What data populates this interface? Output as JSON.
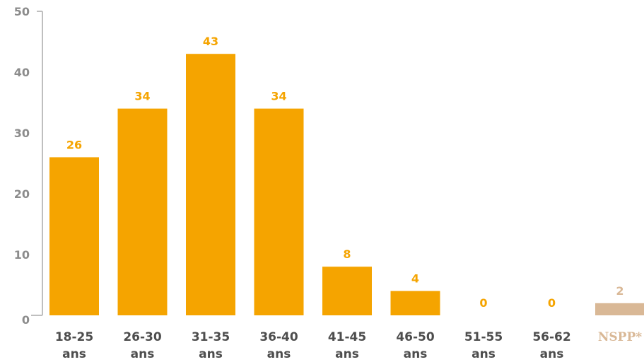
{
  "colors": {
    "bar": "#F5A400",
    "bar_special": "#D9B896",
    "axis": "#BFBFBF",
    "tick_text": "#8C8C8C",
    "category_text": "#4D4D4D"
  },
  "chart_data": {
    "type": "bar",
    "title": "",
    "xlabel": "",
    "ylabel": "",
    "ylim": [
      0,
      50
    ],
    "yticks": [
      "0",
      "10",
      "20",
      "30",
      "40",
      "50"
    ],
    "grid": false,
    "categories": [
      [
        "18-25",
        "ans"
      ],
      [
        "26-30",
        "ans"
      ],
      [
        "31-35",
        "ans"
      ],
      [
        "36-40",
        "ans"
      ],
      [
        "41-45",
        "ans"
      ],
      [
        "46-50",
        "ans"
      ],
      [
        "51-55",
        "ans"
      ],
      [
        "56-62",
        "ans"
      ],
      [
        "NSPP*"
      ]
    ],
    "values": [
      26,
      34,
      43,
      34,
      8,
      4,
      0,
      0,
      2
    ],
    "data_labels": [
      "26",
      "34",
      "43",
      "34",
      "8",
      "4",
      "0",
      "0",
      "2"
    ],
    "highlighted_category_index": 8
  }
}
